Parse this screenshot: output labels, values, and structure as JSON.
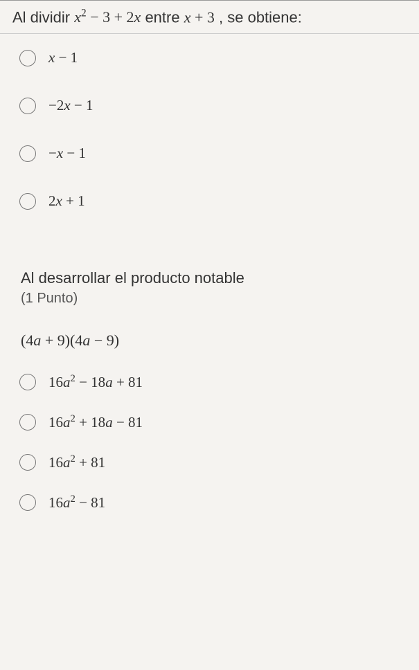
{
  "q1": {
    "prompt_prefix": "Al dividir ",
    "expr1_a": "x",
    "expr1_b": " − 3 + 2",
    "expr1_c": "x",
    "prompt_mid": " entre ",
    "expr2_a": "x",
    "expr2_b": " + 3",
    "prompt_suffix": " , se obtiene:",
    "options": [
      {
        "var": "x",
        "rest": " − 1"
      },
      {
        "pre": "−2",
        "var": "x",
        "rest": " − 1"
      },
      {
        "pre": "−",
        "var": "x",
        "rest": " − 1"
      },
      {
        "pre": "2",
        "var": "x",
        "rest": " + 1"
      }
    ]
  },
  "q2": {
    "title": "Al desarrollar el producto notable",
    "points": "(1 Punto)",
    "expr_pre1": "(4",
    "expr_var1": "a",
    "expr_mid1": " + 9)(4",
    "expr_var2": "a",
    "expr_post": " − 9)",
    "options": [
      {
        "c1": "16",
        "v1": "a",
        "sup1": "2",
        "c2": " − 18",
        "v2": "a",
        "c3": " + 81"
      },
      {
        "c1": "16",
        "v1": "a",
        "sup1": "2",
        "c2": " + 18",
        "v2": "a",
        "c3": " − 81"
      },
      {
        "c1": "16",
        "v1": "a",
        "sup1": "2",
        "c2": " + 81"
      },
      {
        "c1": "16",
        "v1": "a",
        "sup1": "2",
        "c2": " − 81"
      }
    ]
  },
  "colors": {
    "text": "#333333",
    "subtext": "#555555",
    "radio_border": "#777777",
    "divider": "#999999",
    "background": "#f5f3f0"
  }
}
